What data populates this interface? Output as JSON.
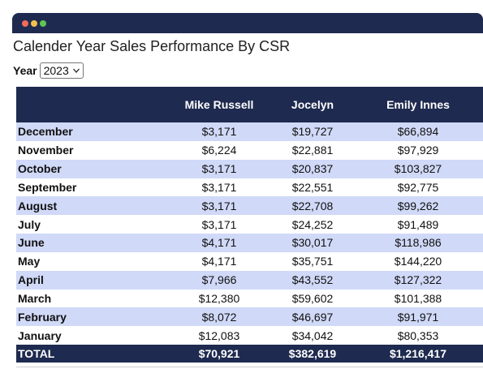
{
  "page": {
    "title": "Calender Year Sales Performance By CSR"
  },
  "year_filter": {
    "label": "Year",
    "selected": "2023"
  },
  "table": {
    "headers": [
      "",
      "Mike Russell",
      "Jocelyn",
      "Emily Innes"
    ],
    "rows": [
      {
        "month": "December",
        "values": [
          "$3,171",
          "$19,727",
          "$66,894"
        ]
      },
      {
        "month": "November",
        "values": [
          "$6,224",
          "$22,881",
          "$97,929"
        ]
      },
      {
        "month": "October",
        "values": [
          "$3,171",
          "$20,837",
          "$103,827"
        ]
      },
      {
        "month": "September",
        "values": [
          "$3,171",
          "$22,551",
          "$92,775"
        ]
      },
      {
        "month": "August",
        "values": [
          "$3,171",
          "$22,708",
          "$99,262"
        ]
      },
      {
        "month": "July",
        "values": [
          "$3,171",
          "$24,252",
          "$91,489"
        ]
      },
      {
        "month": "June",
        "values": [
          "$4,171",
          "$30,017",
          "$118,986"
        ]
      },
      {
        "month": "May",
        "values": [
          "$4,171",
          "$35,751",
          "$144,220"
        ]
      },
      {
        "month": "April",
        "values": [
          "$7,966",
          "$43,552",
          "$127,322"
        ]
      },
      {
        "month": "March",
        "values": [
          "$12,380",
          "$59,602",
          "$101,388"
        ]
      },
      {
        "month": "February",
        "values": [
          "$8,072",
          "$46,697",
          "$91,971"
        ]
      },
      {
        "month": "January",
        "values": [
          "$12,083",
          "$34,042",
          "$80,353"
        ]
      }
    ],
    "total": {
      "label": "TOTAL",
      "values": [
        "$70,921",
        "$382,619",
        "$1,216,417"
      ]
    }
  },
  "colors": {
    "header_bg": "#1e2a4f",
    "row_shade": "#d0d9f7",
    "window_dot_red": "#f26b5b",
    "window_dot_yellow": "#f5bf4f",
    "window_dot_green": "#5fc454"
  },
  "icons": {
    "year_select": "chevron-down-icon"
  }
}
